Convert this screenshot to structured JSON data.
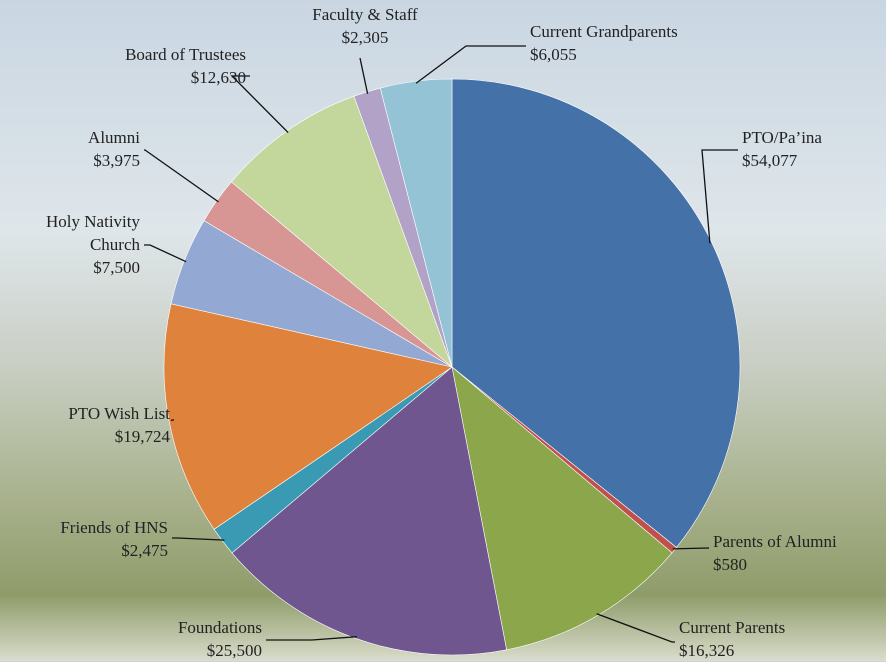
{
  "chart_data": {
    "type": "pie",
    "categories": [
      "PTO/Pa’ina",
      "Parents of Alumni",
      "Current Parents",
      "Foundations",
      "Friends of HNS",
      "PTO Wish List",
      "Holy Nativity Church",
      "Alumni",
      "Board of Trustees",
      "Faculty & Staff",
      "Current Grandparents"
    ],
    "values": [
      54077,
      580,
      16326,
      25500,
      2475,
      19724,
      7500,
      3975,
      12630,
      2305,
      6055
    ],
    "value_labels": [
      "$54,077",
      "$580",
      "$16,326",
      "$25,500",
      "$2,475",
      "$19,724",
      "$7,500",
      "$3,975",
      "$12,630",
      "$2,305",
      "$6,055"
    ],
    "colors": [
      "#4471a7",
      "#c0504d",
      "#8ba64b",
      "#6f568f",
      "#3a9ab3",
      "#df823b",
      "#93a8d3",
      "#d79593",
      "#c3d69b",
      "#b2a2c7",
      "#93c3d5"
    ]
  }
}
